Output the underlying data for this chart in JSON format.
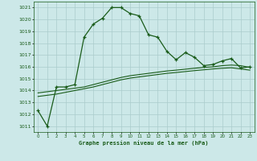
{
  "title": "Graphe pression niveau de la mer (hPa)",
  "background_color": "#cce8e8",
  "grid_color": "#aacccc",
  "line_color": "#1a5c1a",
  "xlim": [
    -0.5,
    23.5
  ],
  "ylim": [
    1010.5,
    1021.5
  ],
  "yticks": [
    1011,
    1012,
    1013,
    1014,
    1015,
    1016,
    1017,
    1018,
    1019,
    1020,
    1021
  ],
  "xticks": [
    0,
    1,
    2,
    3,
    4,
    5,
    6,
    7,
    8,
    9,
    10,
    11,
    12,
    13,
    14,
    15,
    16,
    17,
    18,
    19,
    20,
    21,
    22,
    23
  ],
  "series1_x": [
    0,
    1,
    2,
    3,
    4,
    5,
    6,
    7,
    8,
    9,
    10,
    11,
    12,
    13,
    14,
    15,
    16,
    17,
    18,
    19,
    20,
    21,
    22,
    23
  ],
  "series1_y": [
    1012.3,
    1011.0,
    1014.3,
    1014.3,
    1014.5,
    1018.5,
    1019.6,
    1020.1,
    1021.0,
    1021.0,
    1020.5,
    1020.3,
    1018.7,
    1018.5,
    1017.3,
    1016.6,
    1017.2,
    1016.8,
    1016.1,
    1016.2,
    1016.5,
    1016.7,
    1015.9,
    1016.0
  ],
  "series2_x": [
    0,
    1,
    2,
    3,
    4,
    5,
    6,
    7,
    8,
    9,
    10,
    11,
    12,
    13,
    14,
    15,
    16,
    17,
    18,
    19,
    20,
    21,
    22,
    23
  ],
  "series2_y": [
    1013.8,
    1013.9,
    1014.0,
    1014.1,
    1014.2,
    1014.3,
    1014.5,
    1014.7,
    1014.9,
    1015.1,
    1015.25,
    1015.35,
    1015.45,
    1015.55,
    1015.65,
    1015.72,
    1015.8,
    1015.88,
    1015.95,
    1016.0,
    1016.1,
    1016.15,
    1016.1,
    1015.95
  ],
  "series3_x": [
    0,
    1,
    2,
    3,
    4,
    5,
    6,
    7,
    8,
    9,
    10,
    11,
    12,
    13,
    14,
    15,
    16,
    17,
    18,
    19,
    20,
    21,
    22,
    23
  ],
  "series3_y": [
    1013.5,
    1013.6,
    1013.7,
    1013.85,
    1014.0,
    1014.15,
    1014.3,
    1014.5,
    1014.7,
    1014.9,
    1015.05,
    1015.15,
    1015.25,
    1015.35,
    1015.45,
    1015.52,
    1015.6,
    1015.68,
    1015.75,
    1015.82,
    1015.88,
    1015.92,
    1015.82,
    1015.72
  ]
}
